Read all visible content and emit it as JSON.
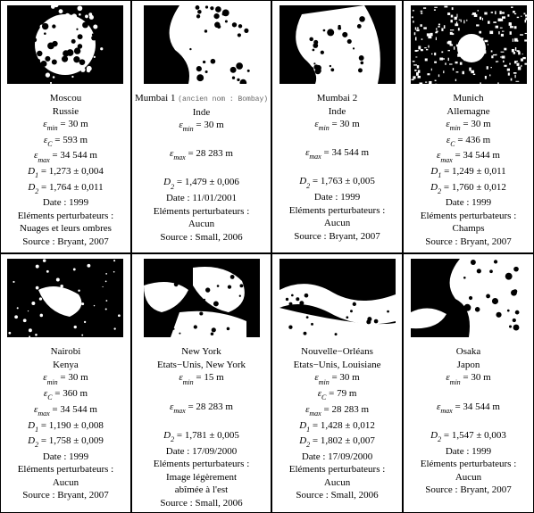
{
  "cells": [
    {
      "city": "Moscou",
      "country": "Russie",
      "eps_min": "30 m",
      "eps_c": "593 m",
      "eps_max": "34 544 m",
      "d1": "1,273 ± 0,004",
      "d2": "1,764 ± 0,011",
      "date": "1999",
      "pert_label": "Eléments perturbateurs :",
      "pert": "Nuages et leurs ombres",
      "source": "Source : Bryant, 2007",
      "ancien": "",
      "thumb_style": "radial"
    },
    {
      "city": "Mumbai 1",
      "ancien": "(ancien nom : Bombay)",
      "country": "Inde",
      "eps_min": "30 m",
      "eps_c": "",
      "eps_max": "28 283 m",
      "d1": "",
      "d2": "1,479 ± 0,006",
      "date": "11/01/2001",
      "pert_label": "Eléments perturbateurs :",
      "pert": "Aucun",
      "source": "Source : Small, 2006",
      "thumb_style": "coast"
    },
    {
      "city": "Mumbai 2",
      "ancien": "",
      "country": "Inde",
      "eps_min": "30 m",
      "eps_c": "",
      "eps_max": "34 544 m",
      "d1": "",
      "d2": "1,763 ± 0,005",
      "date": "1999",
      "pert_label": "Eléments perturbateurs :",
      "pert": "Aucun",
      "source": "Source : Bryant, 2007",
      "thumb_style": "coast2"
    },
    {
      "city": "Munich",
      "ancien": "",
      "country": "Allemagne",
      "eps_min": "30 m",
      "eps_c": "436 m",
      "eps_max": "34 544 m",
      "d1": "1,249 ± 0,011",
      "d2": "1,760 ± 0,012",
      "date": "1999",
      "pert_label": "Eléments perturbateurs :",
      "pert": "Champs",
      "source": "Source : Bryant, 2007",
      "thumb_style": "scatter"
    },
    {
      "city": "Nairobi",
      "ancien": "",
      "country": "Kenya",
      "eps_min": "30 m",
      "eps_c": "360 m",
      "eps_max": "34 544 m",
      "d1": "1,190 ± 0,008",
      "d2": "1,758 ± 0,009",
      "date": "1999",
      "pert_label": "Eléments perturbateurs :",
      "pert": "Aucun",
      "source": "Source : Bryant, 2007",
      "thumb_style": "sparse"
    },
    {
      "city": "New York",
      "ancien": "",
      "country": "Etats−Unis, New York",
      "eps_min": "15 m",
      "eps_c": "",
      "eps_max": "28 283 m",
      "d1": "",
      "d2": "1,781 ± 0,005",
      "date": "17/09/2000",
      "pert_label": "Eléments perturbateurs :",
      "pert": "Image légèrement",
      "pert2": "abîmée à l'est",
      "source": "Source : Small, 2006",
      "thumb_style": "islands"
    },
    {
      "city": "Nouvelle−Orléans",
      "ancien": "",
      "country": "Etats−Unis, Louisiane",
      "eps_min": "30 m",
      "eps_c": "79 m",
      "eps_max": "28 283 m",
      "d1": "1,428 ± 0,012",
      "d2": "1,802 ± 0,007",
      "date": "17/09/2000",
      "pert_label": "Eléments perturbateurs :",
      "pert": "Aucun",
      "source": "Source : Small, 2006",
      "thumb_style": "river"
    },
    {
      "city": "Osaka",
      "ancien": "",
      "country": "Japon",
      "eps_min": "30 m",
      "eps_c": "",
      "eps_max": "34 544 m",
      "d1": "",
      "d2": "1,547 ± 0,003",
      "date": "1999",
      "pert_label": "Eléments perturbateurs :",
      "pert": "Aucun",
      "source": "Source : Bryant, 2007",
      "thumb_style": "bay"
    }
  ],
  "labels": {
    "eps_min_prefix": " = ",
    "eps_c_prefix": " = ",
    "eps_max_prefix": " = ",
    "d1_prefix": " = ",
    "d2_prefix": " = ",
    "date_prefix": "Date : "
  },
  "style": {
    "bg": "#ffffff",
    "border": "#000000",
    "text": "#000000",
    "font_size": 11,
    "thumb_w": 130,
    "thumb_h": 88
  }
}
